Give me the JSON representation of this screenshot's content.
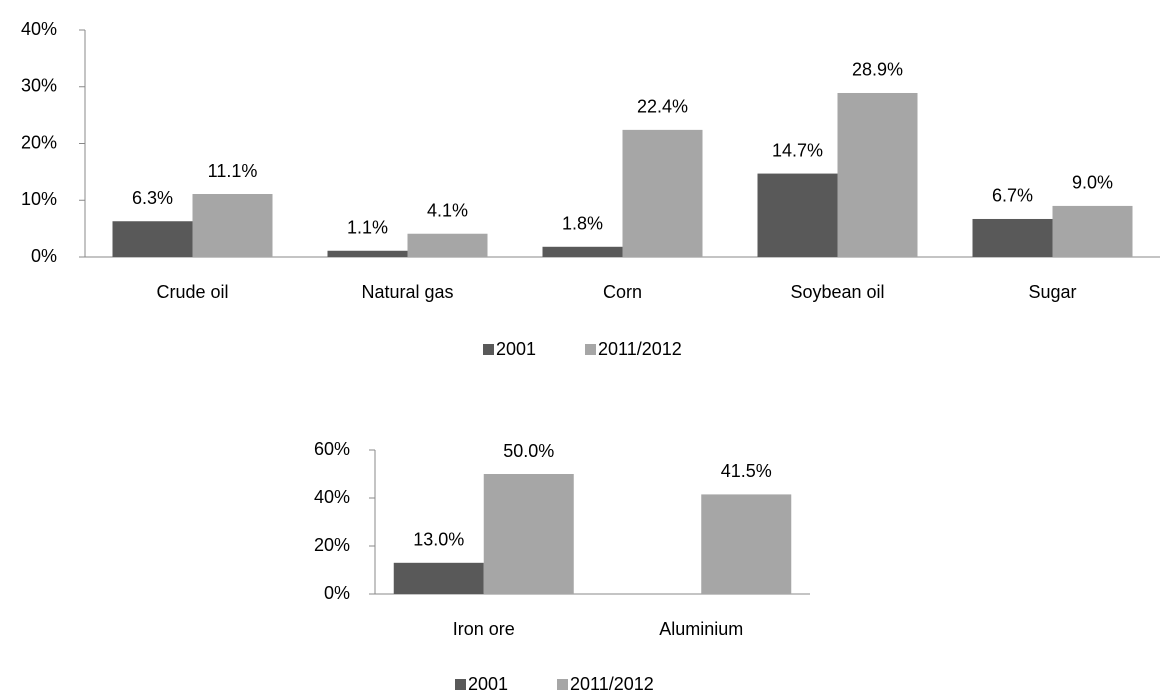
{
  "chart_data": [
    {
      "type": "bar",
      "categories": [
        "Crude oil",
        "Natural gas",
        "Corn",
        "Soybean oil",
        "Sugar"
      ],
      "series": [
        {
          "name": "2001",
          "color": "#595959",
          "values": [
            6.3,
            1.1,
            1.8,
            14.7,
            6.7
          ],
          "value_labels": [
            "6.3%",
            "1.1%",
            "1.8%",
            "14.7%",
            "6.7%"
          ]
        },
        {
          "name": "2011/2012",
          "color": "#a6a6a6",
          "values": [
            11.1,
            4.1,
            22.4,
            28.9,
            9.0
          ],
          "value_labels": [
            "11.1%",
            "4.1%",
            "22.4%",
            "28.9%",
            "9.0%"
          ]
        }
      ],
      "ylim": [
        0,
        40
      ],
      "yticks": [
        {
          "value": 0,
          "label": "0%"
        },
        {
          "value": 10,
          "label": "10%"
        },
        {
          "value": 20,
          "label": "20%"
        },
        {
          "value": 30,
          "label": "30%"
        },
        {
          "value": 40,
          "label": "40%"
        }
      ]
    },
    {
      "type": "bar",
      "categories": [
        "Iron ore",
        "Aluminium"
      ],
      "series": [
        {
          "name": "2001",
          "color": "#595959",
          "values": [
            13.0,
            null
          ],
          "value_labels": [
            "13.0%",
            null
          ]
        },
        {
          "name": "2011/2012",
          "color": "#a6a6a6",
          "values": [
            50.0,
            41.5
          ],
          "value_labels": [
            "50.0%",
            "41.5%"
          ]
        }
      ],
      "ylim": [
        0,
        60
      ],
      "yticks": [
        {
          "value": 0,
          "label": "0%"
        },
        {
          "value": 20,
          "label": "20%"
        },
        {
          "value": 40,
          "label": "40%"
        },
        {
          "value": 60,
          "label": "60%"
        }
      ]
    }
  ]
}
